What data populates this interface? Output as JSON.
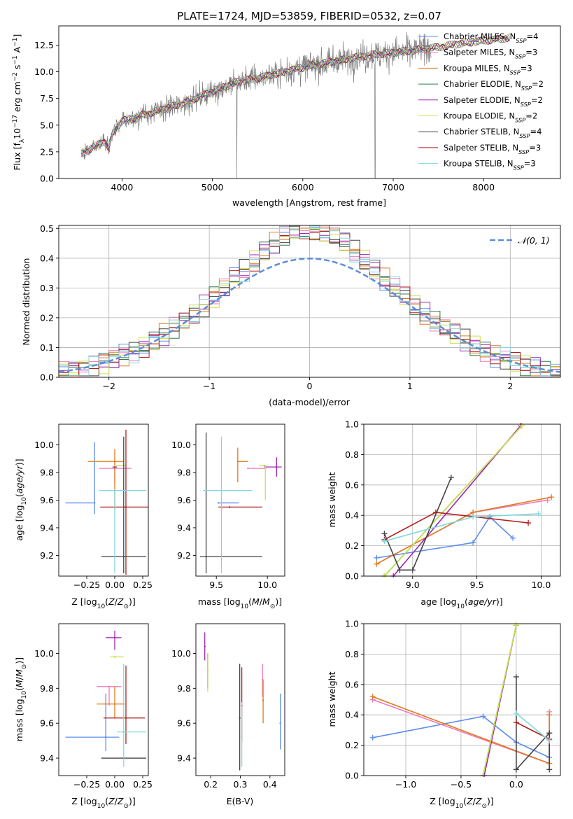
{
  "colors": {
    "chabrier_miles": "#5b8def",
    "salpeter_miles": "#f07ab8",
    "kroupa_miles": "#e07a1f",
    "chabrier_elodie": "#2e7d52",
    "salpeter_elodie": "#9c27b0",
    "kroupa_elodie": "#c9e24a",
    "chabrier_stelib": "#444444",
    "salpeter_stelib": "#b21e1e",
    "kroupa_stelib": "#7fd8dc",
    "normal": "#5b8ed8",
    "spectrum": "#808080"
  },
  "chart_data": [
    {
      "id": "spectrum",
      "type": "line",
      "title": "PLATE=1724, MJD=53859, FIBERID=0532, z=0.07",
      "xlabel": "wavelength [Angstrom, rest frame]",
      "ylabel": "Flux [fλ10⁻¹⁷ erg cm⁻² s⁻¹ A⁻¹]",
      "xlim": [
        3300,
        8850
      ],
      "ylim": [
        0,
        14.3
      ],
      "xticks": [
        4000,
        5000,
        6000,
        7000,
        8000
      ],
      "yticks": [
        0.0,
        2.5,
        5.0,
        7.5,
        10.0,
        12.5
      ],
      "legend_position": "upper right",
      "series": [
        {
          "name": "Chabrier MILES, N_SSP=4",
          "key": "chabrier_miles"
        },
        {
          "name": "Salpeter MILES, N_SSP=3",
          "key": "salpeter_miles"
        },
        {
          "name": "Kroupa MILES, N_SSP=3",
          "key": "kroupa_miles"
        },
        {
          "name": "Chabrier ELODIE, N_SSP=2",
          "key": "chabrier_elodie"
        },
        {
          "name": "Salpeter ELODIE, N_SSP=2",
          "key": "salpeter_elodie"
        },
        {
          "name": "Kroupa ELODIE, N_SSP=2",
          "key": "kroupa_elodie"
        },
        {
          "name": "Chabrier STELIB, N_SSP=4",
          "key": "chabrier_stelib"
        },
        {
          "name": "Salpeter STELIB, N_SSP=3",
          "key": "salpeter_stelib"
        },
        {
          "name": "Kroupa STELIB, N_SSP=3",
          "key": "kroupa_stelib"
        }
      ],
      "continuum": {
        "x": [
          3550,
          3700,
          3800,
          3850,
          3900,
          4000,
          4100,
          4300,
          4500,
          4700,
          4900,
          5100,
          5300,
          5500,
          5700,
          5900,
          6100,
          6300,
          6500,
          6700,
          6900,
          7100,
          7300,
          7500,
          7700,
          7900,
          8100,
          8300
        ],
        "y": [
          2.3,
          3.0,
          3.5,
          2.9,
          4.3,
          5.4,
          5.6,
          6.1,
          6.6,
          7.1,
          7.8,
          8.5,
          9.1,
          9.4,
          9.8,
          10.2,
          10.6,
          10.9,
          11.2,
          11.5,
          11.7,
          11.9,
          12.1,
          12.3,
          12.6,
          12.8,
          13.0,
          13.2
        ]
      }
    },
    {
      "id": "residuals",
      "type": "bar",
      "xlabel": "(data-model)/error",
      "ylabel": "Normed distribution",
      "xlim": [
        -2.5,
        2.5
      ],
      "ylim": [
        0,
        0.51
      ],
      "xticks": [
        -2,
        -1,
        0,
        1,
        2
      ],
      "yticks": [
        0.0,
        0.1,
        0.2,
        0.3,
        0.4,
        0.5
      ],
      "bin_width": 0.1,
      "reference_curve": "𝒩(0, 1)",
      "bins": [
        -2.5,
        -2.4,
        -2.3,
        -2.2,
        -2.1,
        -2.0,
        -1.9,
        -1.8,
        -1.7,
        -1.6,
        -1.5,
        -1.4,
        -1.3,
        -1.2,
        -1.1,
        -1.0,
        -0.9,
        -0.8,
        -0.7,
        -0.6,
        -0.5,
        -0.4,
        -0.3,
        -0.2,
        -0.1,
        0.0,
        0.1,
        0.2,
        0.3,
        0.4,
        0.5,
        0.6,
        0.7,
        0.8,
        0.9,
        1.0,
        1.1,
        1.2,
        1.3,
        1.4,
        1.5,
        1.6,
        1.7,
        1.8,
        1.9,
        2.0,
        2.1,
        2.2,
        2.3,
        2.4
      ]
    },
    {
      "id": "age_vs_Z",
      "type": "scatter",
      "xlabel": "Z [log₁₀(Z/Z⊙)]",
      "ylabel": "age  [log₁₀(age/yr)]",
      "xlim": [
        -0.5,
        0.3
      ],
      "ylim": [
        9.05,
        10.15
      ],
      "xticks": [
        -0.25,
        0.0,
        0.25
      ],
      "yticks": [
        9.2,
        9.4,
        9.6,
        9.8,
        10.0
      ],
      "points": [
        {
          "key": "chabrier_miles",
          "x": -0.18,
          "y": 9.58,
          "xerr": [
            0.26,
            0.0
          ],
          "yerr": [
            0.08,
            0.44
          ]
        },
        {
          "key": "salpeter_miles",
          "x": 0.0,
          "y": 9.83,
          "xerr": [
            0.14,
            0.15
          ],
          "yerr": [
            0.1,
            0.05
          ]
        },
        {
          "key": "kroupa_miles",
          "x": 0.0,
          "y": 9.88,
          "xerr": [
            0.24,
            0.08
          ],
          "yerr": [
            0.35,
            0.09
          ]
        },
        {
          "key": "chabrier_elodie",
          "x": 0.0,
          "y": 9.85,
          "xerr": [
            0.0,
            0.0
          ],
          "yerr": [
            0.0,
            0.0
          ]
        },
        {
          "key": "salpeter_elodie",
          "x": 0.0,
          "y": 9.84,
          "xerr": [
            0.02,
            0.02
          ],
          "yerr": [
            0.0,
            0.0
          ]
        },
        {
          "key": "kroupa_elodie",
          "x": 0.0,
          "y": 9.85,
          "xerr": [
            0.0,
            0.1
          ],
          "yerr": [
            0.0,
            0.0
          ]
        },
        {
          "key": "chabrier_stelib",
          "x": 0.08,
          "y": 9.19,
          "xerr": [
            0.2,
            0.2
          ],
          "yerr": [
            0.12,
            0.87
          ]
        },
        {
          "key": "salpeter_stelib",
          "x": 0.1,
          "y": 9.55,
          "xerr": [
            0.23,
            0.2
          ],
          "yerr": [
            0.49,
            0.56
          ]
        },
        {
          "key": "kroupa_stelib",
          "x": 0.0,
          "y": 9.67,
          "xerr": [
            0.14,
            0.28
          ],
          "yerr": [
            0.6,
            0.0
          ]
        }
      ]
    },
    {
      "id": "age_vs_mass",
      "type": "scatter",
      "xlabel": "mass [log₁₀(M/M⊙)]",
      "xlim": [
        9.3,
        10.17
      ],
      "ylim": [
        9.05,
        10.15
      ],
      "xticks": [
        9.5,
        10.0
      ],
      "yticks": [
        9.2,
        9.4,
        9.6,
        9.8,
        10.0
      ],
      "points": [
        {
          "key": "chabrier_miles",
          "x": 9.52,
          "y": 9.58,
          "xerr": [
            0.0,
            0.2
          ],
          "yerr": [
            0.0,
            0.0
          ]
        },
        {
          "key": "salpeter_miles",
          "x": 9.81,
          "y": 9.83,
          "xerr": [
            0.0,
            0.18
          ],
          "yerr": [
            0.0,
            0.0
          ]
        },
        {
          "key": "kroupa_miles",
          "x": 9.71,
          "y": 9.88,
          "xerr": [
            0.0,
            0.1
          ],
          "yerr": [
            0.15,
            0.1
          ]
        },
        {
          "key": "chabrier_elodie",
          "x": 9.97,
          "y": 9.85,
          "xerr": [
            0.0,
            0.0
          ],
          "yerr": [
            0.0,
            0.0
          ]
        },
        {
          "key": "salpeter_elodie",
          "x": 10.09,
          "y": 9.84,
          "xerr": [
            0.12,
            0.05
          ],
          "yerr": [
            0.07,
            0.07
          ]
        },
        {
          "key": "kroupa_elodie",
          "x": 9.98,
          "y": 9.85,
          "xerr": [
            0.06,
            0.0
          ],
          "yerr": [
            0.25,
            0.0
          ]
        },
        {
          "key": "chabrier_stelib",
          "x": 9.4,
          "y": 9.19,
          "xerr": [
            0.06,
            0.55
          ],
          "yerr": [
            0.12,
            0.9
          ]
        },
        {
          "key": "salpeter_stelib",
          "x": 9.63,
          "y": 9.55,
          "xerr": [
            0.11,
            0.32
          ],
          "yerr": [
            0.0,
            0.0
          ]
        },
        {
          "key": "kroupa_stelib",
          "x": 9.55,
          "y": 9.67,
          "xerr": [
            0.18,
            0.3
          ],
          "yerr": [
            0.6,
            0.39
          ]
        }
      ]
    },
    {
      "id": "weight_vs_age",
      "type": "line",
      "xlabel": "age  [log₁₀(age/yr)]",
      "ylabel": "mass weight",
      "xlim": [
        8.62,
        10.15
      ],
      "ylim": [
        0,
        1.0
      ],
      "xticks": [
        9.0,
        9.5,
        10.0
      ],
      "yticks": [
        0.0,
        0.2,
        0.4,
        0.6,
        0.8,
        1.0
      ],
      "series": [
        {
          "key": "chabrier_miles",
          "x": [
            8.72,
            9.47,
            9.6,
            9.78
          ],
          "y": [
            0.12,
            0.22,
            0.39,
            0.25
          ]
        },
        {
          "key": "salpeter_miles",
          "x": [
            8.72,
            9.47,
            10.05
          ],
          "y": [
            0.08,
            0.42,
            0.5
          ]
        },
        {
          "key": "kroupa_miles",
          "x": [
            8.72,
            9.47,
            10.08
          ],
          "y": [
            0.08,
            0.42,
            0.52
          ]
        },
        {
          "key": "chabrier_elodie",
          "x": [
            8.78,
            9.85
          ],
          "y": [
            0.0,
            0.99
          ]
        },
        {
          "key": "salpeter_elodie",
          "x": [
            8.85,
            9.84
          ],
          "y": [
            0.0,
            0.99
          ]
        },
        {
          "key": "kroupa_elodie",
          "x": [
            8.78,
            9.85
          ],
          "y": [
            0.0,
            0.99
          ]
        },
        {
          "key": "chabrier_stelib",
          "x": [
            8.78,
            8.9,
            9.0,
            9.3
          ],
          "y": [
            0.28,
            0.04,
            0.04,
            0.65
          ]
        },
        {
          "key": "salpeter_stelib",
          "x": [
            8.78,
            9.18,
            9.9
          ],
          "y": [
            0.24,
            0.42,
            0.35
          ]
        },
        {
          "key": "kroupa_stelib",
          "x": [
            8.78,
            9.47,
            9.98
          ],
          "y": [
            0.23,
            0.39,
            0.41
          ]
        }
      ]
    },
    {
      "id": "mass_vs_Z",
      "type": "scatter",
      "xlabel": "Z [log₁₀(Z/Z⊙)]",
      "ylabel": "mass [log₁₀(M/M⊙)]",
      "xlim": [
        -0.5,
        0.3
      ],
      "ylim": [
        9.3,
        10.17
      ],
      "xticks": [
        -0.25,
        0.0,
        0.25
      ],
      "yticks": [
        9.4,
        9.6,
        9.8,
        10.0
      ],
      "points": [
        {
          "key": "chabrier_miles",
          "x": -0.08,
          "y": 9.52,
          "xerr": [
            0.36,
            0.12
          ],
          "yerr": [
            0.08,
            0.25
          ]
        },
        {
          "key": "salpeter_miles",
          "x": -0.05,
          "y": 9.81,
          "xerr": [
            0.11,
            0.11
          ],
          "yerr": [
            0.11,
            0.0
          ]
        },
        {
          "key": "kroupa_miles",
          "x": 0.0,
          "y": 9.71,
          "xerr": [
            0.16,
            0.09
          ],
          "yerr": [
            0.08,
            0.1
          ]
        },
        {
          "key": "chabrier_elodie",
          "x": 0.0,
          "y": 9.98,
          "xerr": [
            0.0,
            0.0
          ],
          "yerr": [
            0.0,
            0.0
          ]
        },
        {
          "key": "salpeter_elodie",
          "x": 0.0,
          "y": 10.09,
          "xerr": [
            0.08,
            0.06
          ],
          "yerr": [
            0.07,
            0.04
          ]
        },
        {
          "key": "kroupa_elodie",
          "x": 0.0,
          "y": 9.98,
          "xerr": [
            0.04,
            0.08
          ],
          "yerr": [
            0.0,
            0.0
          ]
        },
        {
          "key": "chabrier_stelib",
          "x": 0.08,
          "y": 9.4,
          "xerr": [
            0.2,
            0.2
          ],
          "yerr": [
            0.0,
            0.0
          ]
        },
        {
          "key": "salpeter_stelib",
          "x": 0.1,
          "y": 9.63,
          "xerr": [
            0.2,
            0.17
          ],
          "yerr": [
            0.15,
            0.3
          ]
        },
        {
          "key": "kroupa_stelib",
          "x": 0.08,
          "y": 9.55,
          "xerr": [
            0.06,
            0.2
          ],
          "yerr": [
            0.2,
            0.39
          ]
        }
      ]
    },
    {
      "id": "mass_vs_ebv",
      "type": "scatter",
      "xlabel": "E(B-V)",
      "xlim": [
        0.15,
        0.45
      ],
      "ylim": [
        9.3,
        10.17
      ],
      "xticks": [
        0.2,
        0.3,
        0.4
      ],
      "yticks": [
        9.4,
        9.6,
        9.8,
        10.0
      ],
      "points": [
        {
          "key": "chabrier_miles",
          "x": 0.435,
          "y": 9.6,
          "yerr": [
            0.15,
            0.17
          ]
        },
        {
          "key": "salpeter_miles",
          "x": 0.375,
          "y": 9.85,
          "yerr": [
            0.1,
            0.09
          ]
        },
        {
          "key": "kroupa_miles",
          "x": 0.377,
          "y": 9.73,
          "yerr": [
            0.13,
            0.12
          ]
        },
        {
          "key": "chabrier_elodie",
          "x": 0.19,
          "y": 9.9,
          "yerr": [
            0.1,
            0.1
          ]
        },
        {
          "key": "salpeter_elodie",
          "x": 0.18,
          "y": 10.04,
          "yerr": [
            0.08,
            0.08
          ]
        },
        {
          "key": "kroupa_elodie",
          "x": 0.19,
          "y": 9.9,
          "yerr": [
            0.12,
            0.1
          ]
        },
        {
          "key": "chabrier_stelib",
          "x": 0.298,
          "y": 9.63,
          "yerr": [
            0.3,
            0.31
          ]
        },
        {
          "key": "salpeter_stelib",
          "x": 0.305,
          "y": 9.7,
          "yerr": [
            0.21,
            0.22
          ]
        },
        {
          "key": "kroupa_stelib",
          "x": 0.305,
          "y": 9.52,
          "yerr": [
            0.17,
            0.2
          ]
        }
      ]
    },
    {
      "id": "weight_vs_Z",
      "type": "line",
      "xlabel": "Z [log₁₀(Z/Z⊙)]",
      "ylabel": "mass weight",
      "xlim": [
        -1.38,
        0.4
      ],
      "ylim": [
        0,
        1.0
      ],
      "xticks": [
        -1.0,
        -0.5,
        0.0
      ],
      "yticks": [
        0.0,
        0.2,
        0.4,
        0.6,
        0.8,
        1.0
      ],
      "series": [
        {
          "key": "chabrier_miles",
          "x": [
            -1.3,
            -0.3,
            0.0,
            0.3
          ],
          "y": [
            0.25,
            0.39,
            0.22,
            0.12
          ]
        },
        {
          "key": "salpeter_miles",
          "x": [
            -1.3,
            0.3,
            0.3
          ],
          "y": [
            0.5,
            0.08,
            0.42
          ]
        },
        {
          "key": "kroupa_miles",
          "x": [
            -1.3,
            0.3,
            0.3
          ],
          "y": [
            0.52,
            0.08,
            0.4
          ]
        },
        {
          "key": "chabrier_elodie",
          "x": [
            -0.3,
            0.0
          ],
          "y": [
            0.0,
            0.99
          ]
        },
        {
          "key": "salpeter_elodie",
          "x": [
            -0.29,
            0.0
          ],
          "y": [
            0.0,
            0.99
          ]
        },
        {
          "key": "kroupa_elodie",
          "x": [
            -0.3,
            0.0
          ],
          "y": [
            0.0,
            0.99
          ]
        },
        {
          "key": "chabrier_stelib",
          "x": [
            0.0,
            0.0,
            0.0,
            0.3,
            0.3,
            0.3
          ],
          "y": [
            0.65,
            0.04,
            0.04,
            0.28,
            0.04,
            0.28
          ]
        },
        {
          "key": "salpeter_stelib",
          "x": [
            0.0,
            0.3
          ],
          "y": [
            0.35,
            0.24
          ]
        },
        {
          "key": "kroupa_stelib",
          "x": [
            0.0,
            0.3
          ],
          "y": [
            0.41,
            0.23
          ]
        }
      ]
    }
  ]
}
